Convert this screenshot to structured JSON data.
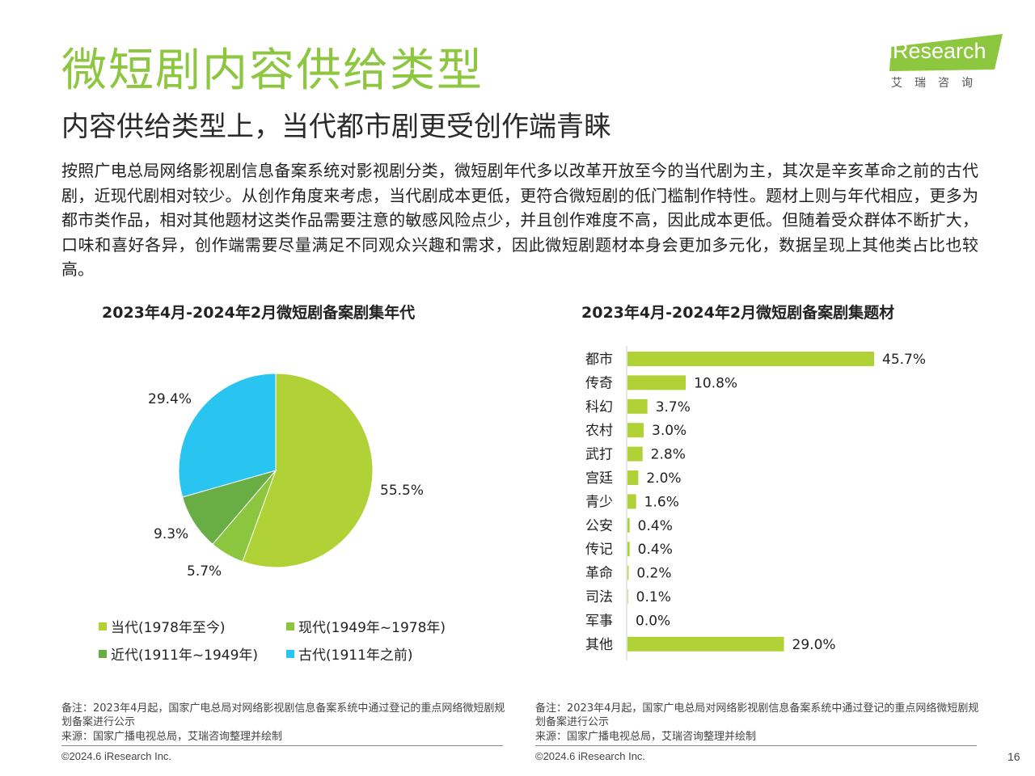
{
  "page": {
    "title": "微短剧内容供给类型",
    "subtitle": "内容供给类型上，当代都市剧更受创作端青睐",
    "body": "按照广电总局网络影视剧信息备案系统对影视剧分类，微短剧年代多以改革开放至今的当代剧为主，其次是辛亥革命之前的古代剧，近现代剧相对较少。从创作角度来考虑，当代剧成本更低，更符合微短剧的低门槛制作特性。题材上则与年代相应，更多为都市类作品，相对其他题材这类作品需要注意的敏感风险点少，并且创作难度不高，因此成本更低。但随着受众群体不断扩大，口味和喜好各异，创作端需要尽量满足不同观众兴趣和需求，因此微短剧题材本身会更加多元化，数据呈现上其他类占比也较高。",
    "page_number": "16"
  },
  "logo": {
    "main": "iResearch",
    "sub": "艾瑞咨询",
    "color": "#8dc63f"
  },
  "footer": {
    "left": {
      "note": "备注：2023年4月起，国家广电总局对网络影视剧信息备案系统中通过登记的重点网络微短剧规划备案进行公示",
      "source": "来源：国家广播电视总局，艾瑞咨询整理并绘制",
      "copyright": "©2024.6 iResearch Inc."
    },
    "right": {
      "note": "备注：2023年4月起，国家广电总局对网络影视剧信息备案系统中通过登记的重点网络微短剧规划备案进行公示",
      "source": "来源：国家广播电视总局，艾瑞咨询整理并绘制",
      "copyright": "©2024.6 iResearch Inc."
    }
  },
  "chart_data": [
    {
      "type": "pie",
      "title": "2023年4月-2024年2月微短剧备案剧集年代",
      "labels": [
        "当代(1978年至今)",
        "现代(1949年~1978年)",
        "近代(1911年~1949年)",
        "古代(1911年之前)"
      ],
      "values": [
        55.5,
        5.7,
        9.3,
        29.4
      ],
      "value_labels": [
        "55.5%",
        "5.7%",
        "9.3%",
        "29.4%"
      ],
      "colors": [
        "#b1d236",
        "#8cc63f",
        "#69ad45",
        "#29c4f0"
      ],
      "legend": "bottom"
    },
    {
      "type": "bar",
      "orientation": "horizontal",
      "title": "2023年4月-2024年2月微短剧备案剧集题材",
      "categories": [
        "都市",
        "传奇",
        "科幻",
        "农村",
        "武打",
        "宫廷",
        "青少",
        "公安",
        "传记",
        "革命",
        "司法",
        "军事",
        "其他"
      ],
      "values": [
        45.7,
        10.8,
        3.7,
        3.0,
        2.8,
        2.0,
        1.6,
        0.4,
        0.4,
        0.2,
        0.1,
        0.0,
        29.0
      ],
      "value_labels": [
        "45.7%",
        "10.8%",
        "3.7%",
        "3.0%",
        "2.8%",
        "2.0%",
        "1.6%",
        "0.4%",
        "0.4%",
        "0.2%",
        "0.1%",
        "0.0%",
        "29.0%"
      ],
      "color": "#b1d236",
      "unit": "%"
    }
  ]
}
